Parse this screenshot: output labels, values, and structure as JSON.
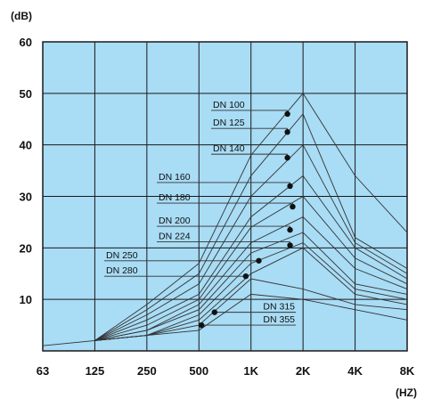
{
  "chart_data": {
    "type": "line",
    "title": "",
    "xlabel": "",
    "ylabel": "",
    "y_unit": "(dB)",
    "x_unit": "(HZ)",
    "x_categories": [
      "63",
      "125",
      "250",
      "500",
      "1K",
      "2K",
      "4K",
      "8K"
    ],
    "y_ticks": [
      "10",
      "20",
      "30",
      "40",
      "50",
      "60"
    ],
    "ylim": [
      0,
      60
    ],
    "grid": true,
    "colors": {
      "plot_bg": "#a9dcf5",
      "grid": "#1a1a1a",
      "line": "#333333",
      "marker": "#111111"
    },
    "series": [
      {
        "name": "DN 100",
        "values": [
          1,
          2,
          9,
          17,
          38,
          50,
          34,
          23
        ],
        "marker_at": 1.7,
        "marker_value": 46
      },
      {
        "name": "DN 125",
        "values": [
          null,
          2,
          8,
          15,
          34,
          46,
          22,
          16
        ],
        "marker_at": 1.7,
        "marker_value": 42.5
      },
      {
        "name": "DN 140",
        "values": [
          null,
          2,
          7,
          13,
          30,
          40,
          21,
          15
        ],
        "marker_at": 1.7,
        "marker_value": 37.5
      },
      {
        "name": "DN 160",
        "values": [
          null,
          2,
          6,
          11,
          26,
          34,
          20,
          14
        ],
        "marker_at": 1.75,
        "marker_value": 32
      },
      {
        "name": "DN 180",
        "values": [
          null,
          2,
          5,
          10,
          24,
          30,
          18,
          13
        ],
        "marker_at": 1.8,
        "marker_value": 28
      },
      {
        "name": "DN 200",
        "values": [
          null,
          2,
          4,
          9,
          21,
          26,
          16,
          12
        ],
        "marker_at": 1.75,
        "marker_value": 23.5
      },
      {
        "name": "DN 224",
        "values": [
          null,
          2,
          4,
          8,
          19,
          23,
          13,
          11
        ],
        "marker_at": 1.75,
        "marker_value": 20.5
      },
      {
        "name": "DN 250",
        "values": [
          null,
          2,
          3,
          7,
          17,
          21,
          12,
          10
        ],
        "marker_at": 1.15,
        "marker_value": 17.5
      },
      {
        "name": "DN 280",
        "values": [
          null,
          2,
          3,
          6,
          15,
          20,
          11,
          9
        ],
        "marker_at": 0.9,
        "marker_value": 14.5
      },
      {
        "name": "DN 315",
        "values": [
          null,
          2,
          3,
          5,
          14,
          12,
          9,
          8
        ],
        "marker_at": 0.3,
        "marker_value": 7.5
      },
      {
        "name": "DN 355",
        "values": [
          null,
          2,
          3,
          4,
          11,
          10,
          8,
          6
        ],
        "marker_at": 0.05,
        "marker_value": 5
      }
    ]
  }
}
